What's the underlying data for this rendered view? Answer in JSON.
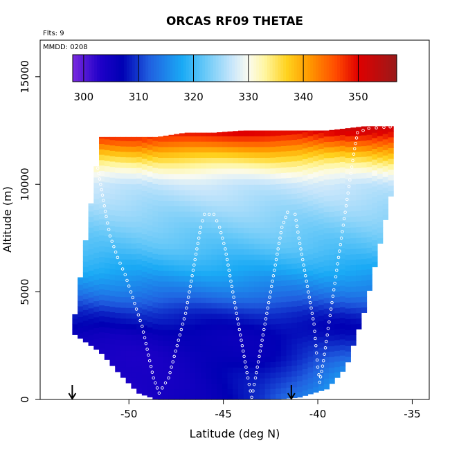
{
  "chart_data": {
    "type": "heatmap",
    "title": "ORCAS RF09 THETAE",
    "annotations": {
      "flights": "Flts: 9",
      "date": "MMDD: 0208"
    },
    "xlabel": "Latitude (deg N)",
    "ylabel": "Altitude (m)",
    "xlim": [
      -54.7,
      -34.1
    ],
    "ylim": [
      0,
      16700
    ],
    "x_ticks": [
      -50,
      -45,
      -40,
      -35
    ],
    "y_ticks": [
      0,
      5000,
      10000,
      15000
    ],
    "x_tick_labels": [
      "-50",
      "-45",
      "-40",
      "-35"
    ],
    "y_tick_labels": [
      "0",
      "5000",
      "10000",
      "15000"
    ],
    "colorbar": {
      "ticks": [
        300,
        310,
        320,
        330,
        340,
        350
      ],
      "tick_labels": [
        "300",
        "310",
        "320",
        "330",
        "340",
        "350"
      ],
      "range": [
        298,
        357
      ],
      "stops": [
        {
          "v": 298,
          "c": "#7b2be0"
        },
        {
          "v": 303,
          "c": "#1f00c8"
        },
        {
          "v": 307,
          "c": "#0000b4"
        },
        {
          "v": 312,
          "c": "#2060e0"
        },
        {
          "v": 318,
          "c": "#1aaaf5"
        },
        {
          "v": 322,
          "c": "#66c8f8"
        },
        {
          "v": 327,
          "c": "#c8e6fb"
        },
        {
          "v": 330,
          "c": "#fbfbf0"
        },
        {
          "v": 333,
          "c": "#fff6a0"
        },
        {
          "v": 337,
          "c": "#ffd21e"
        },
        {
          "v": 341,
          "c": "#ff9a00"
        },
        {
          "v": 346,
          "c": "#ff4a00"
        },
        {
          "v": 350,
          "c": "#e00000"
        },
        {
          "v": 357,
          "c": "#9a1a1a"
        }
      ]
    },
    "field": {
      "x_edges": [
        -53.0,
        -51.5,
        -51.0,
        -50.5,
        -49.5,
        -48.5,
        -47.0,
        -45.5,
        -44.0,
        -42.5,
        -41.0,
        -39.5,
        -38.5,
        -37.5,
        -36.0
      ],
      "bottom_alt": [
        3100,
        2200,
        1700,
        1200,
        300,
        0,
        0,
        0,
        0,
        0,
        100,
        500,
        1500,
        4200,
        10000
      ],
      "top_alt": [
        3100,
        12200,
        12200,
        12200,
        12200,
        12200,
        12400,
        12400,
        12500,
        12500,
        12500,
        12500,
        12600,
        12700,
        12700
      ],
      "profile_altitudes": [
        0,
        1000,
        2000,
        3000,
        4000,
        5000,
        6000,
        7000,
        8000,
        9000,
        10000,
        10500,
        11000,
        11500,
        12000,
        12500
      ],
      "profile_thetae": [
        306,
        306,
        305,
        306,
        309,
        314,
        318,
        321,
        323,
        325,
        327,
        330,
        334,
        339,
        345,
        351
      ],
      "surface_thetae": [
        {
          "lat": -53.0,
          "v": 300
        },
        {
          "lat": -50.0,
          "v": 302
        },
        {
          "lat": -46.0,
          "v": 306
        },
        {
          "lat": -43.0,
          "v": 309
        },
        {
          "lat": -40.0,
          "v": 317
        },
        {
          "lat": -38.5,
          "v": 321
        }
      ]
    },
    "flight_track": [
      {
        "lat": -52.0,
        "alt": 12150
      },
      {
        "lat": -51.8,
        "alt": 11500
      },
      {
        "lat": -51.6,
        "alt": 10500
      },
      {
        "lat": -51.4,
        "alt": 9500
      },
      {
        "lat": -51.2,
        "alt": 8500
      },
      {
        "lat": -51.0,
        "alt": 7600
      },
      {
        "lat": -50.6,
        "alt": 6600
      },
      {
        "lat": -50.2,
        "alt": 5800
      },
      {
        "lat": -49.9,
        "alt": 5000
      },
      {
        "lat": -49.6,
        "alt": 4200
      },
      {
        "lat": -49.3,
        "alt": 3400
      },
      {
        "lat": -49.1,
        "alt": 2600
      },
      {
        "lat": -48.9,
        "alt": 1800
      },
      {
        "lat": -48.7,
        "alt": 1000
      },
      {
        "lat": -48.4,
        "alt": 300
      },
      {
        "lat": -47.9,
        "alt": 1000
      },
      {
        "lat": -47.6,
        "alt": 2000
      },
      {
        "lat": -47.3,
        "alt": 3000
      },
      {
        "lat": -47.0,
        "alt": 4000
      },
      {
        "lat": -46.8,
        "alt": 5000
      },
      {
        "lat": -46.6,
        "alt": 6000
      },
      {
        "lat": -46.4,
        "alt": 7000
      },
      {
        "lat": -46.2,
        "alt": 8000
      },
      {
        "lat": -46.0,
        "alt": 8600
      },
      {
        "lat": -45.5,
        "alt": 8600
      },
      {
        "lat": -45.2,
        "alt": 8000
      },
      {
        "lat": -44.9,
        "alt": 7000
      },
      {
        "lat": -44.7,
        "alt": 6000
      },
      {
        "lat": -44.5,
        "alt": 5000
      },
      {
        "lat": -44.3,
        "alt": 4000
      },
      {
        "lat": -44.1,
        "alt": 3000
      },
      {
        "lat": -43.9,
        "alt": 2000
      },
      {
        "lat": -43.7,
        "alt": 1000
      },
      {
        "lat": -43.5,
        "alt": 100
      },
      {
        "lat": -43.3,
        "alt": 1000
      },
      {
        "lat": -43.1,
        "alt": 2000
      },
      {
        "lat": -42.9,
        "alt": 3000
      },
      {
        "lat": -42.7,
        "alt": 4000
      },
      {
        "lat": -42.5,
        "alt": 5000
      },
      {
        "lat": -42.3,
        "alt": 6000
      },
      {
        "lat": -42.1,
        "alt": 7000
      },
      {
        "lat": -41.9,
        "alt": 8000
      },
      {
        "lat": -41.6,
        "alt": 8700
      },
      {
        "lat": -41.2,
        "alt": 8600
      },
      {
        "lat": -41.0,
        "alt": 7500
      },
      {
        "lat": -40.8,
        "alt": 6500
      },
      {
        "lat": -40.6,
        "alt": 5500
      },
      {
        "lat": -40.4,
        "alt": 4500
      },
      {
        "lat": -40.2,
        "alt": 3500
      },
      {
        "lat": -40.1,
        "alt": 2500
      },
      {
        "lat": -40.0,
        "alt": 1500
      },
      {
        "lat": -39.9,
        "alt": 800
      },
      {
        "lat": -39.7,
        "alt": 1800
      },
      {
        "lat": -39.5,
        "alt": 3000
      },
      {
        "lat": -39.3,
        "alt": 4200
      },
      {
        "lat": -39.1,
        "alt": 5400
      },
      {
        "lat": -38.9,
        "alt": 6600
      },
      {
        "lat": -38.7,
        "alt": 7800
      },
      {
        "lat": -38.5,
        "alt": 9000
      },
      {
        "lat": -38.3,
        "alt": 10200
      },
      {
        "lat": -38.1,
        "alt": 11400
      },
      {
        "lat": -37.9,
        "alt": 12400
      },
      {
        "lat": -37.3,
        "alt": 12600
      },
      {
        "lat": -36.5,
        "alt": 12650
      },
      {
        "lat": -35.5,
        "alt": 12700
      }
    ],
    "markers": [
      {
        "lat": -53.0,
        "alt": 0
      },
      {
        "lat": -41.4,
        "alt": 0
      }
    ]
  }
}
